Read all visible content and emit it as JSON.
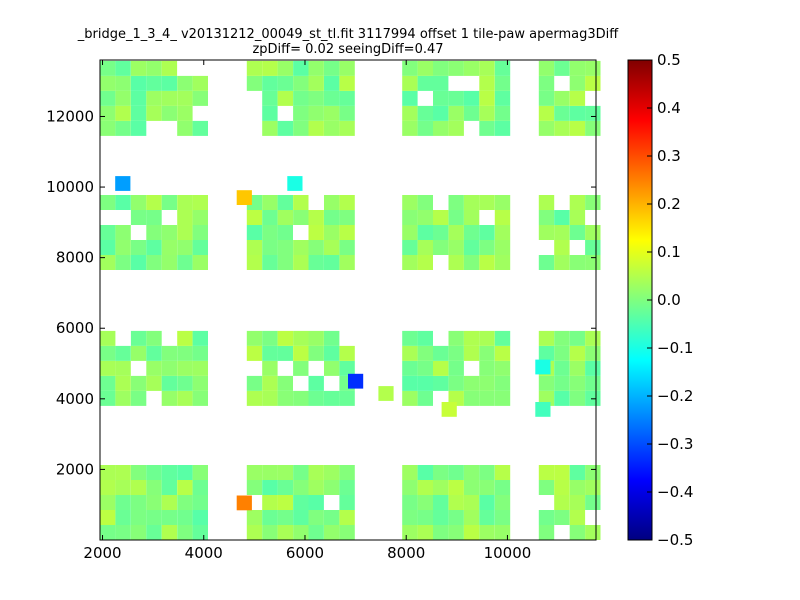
{
  "chart_data": {
    "type": "heatmap",
    "title_line1": "_bridge_1_3_4_ v20131212_00049_st_tl.fit 3117994 offset 1 tile-paw apermag3Diff",
    "title_line2": "zpDiff= 0.02 seeingDiff=0.47",
    "xlabel": "",
    "ylabel": "",
    "xlim": [
      1950,
      11750
    ],
    "ylim": [
      0,
      13600
    ],
    "x_ticks": [
      2000,
      4000,
      6000,
      8000,
      10000
    ],
    "x_tick_labels": [
      "2000",
      "4000",
      "6000",
      "8000",
      "10000"
    ],
    "y_ticks": [
      2000,
      4000,
      6000,
      8000,
      10000,
      12000
    ],
    "y_tick_labels": [
      "2000",
      "4000",
      "6000",
      "8000",
      "10000",
      "12000"
    ],
    "colormap": "jet",
    "color_range": [
      -0.5,
      0.5
    ],
    "colorbar_ticks": [
      0.5,
      0.4,
      0.3,
      0.2,
      0.1,
      0.0,
      -0.1,
      -0.2,
      -0.3,
      -0.4,
      -0.5
    ],
    "colorbar_tick_labels": [
      "0.5",
      "0.4",
      "0.3",
      "0.2",
      "0.1",
      "0.0",
      "−0.1",
      "−0.2",
      "−0.3",
      "−0.4",
      "−0.5"
    ],
    "grid": false,
    "cell_size": [
      305,
      425
    ],
    "blocks": [
      {
        "x0": 1950,
        "cols": 7,
        "y0": 0,
        "rows": 5
      },
      {
        "x0": 4850,
        "cols": 7,
        "y0": 0,
        "rows": 5
      },
      {
        "x0": 7920,
        "cols": 7,
        "y0": 0,
        "rows": 5
      },
      {
        "x0": 10620,
        "cols": 4,
        "y0": 0,
        "rows": 5
      },
      {
        "x0": 1950,
        "cols": 7,
        "y0": 3800,
        "rows": 5
      },
      {
        "x0": 4850,
        "cols": 7,
        "y0": 3800,
        "rows": 5
      },
      {
        "x0": 7920,
        "cols": 7,
        "y0": 3800,
        "rows": 5
      },
      {
        "x0": 10620,
        "cols": 4,
        "y0": 3800,
        "rows": 5
      },
      {
        "x0": 1950,
        "cols": 7,
        "y0": 7650,
        "rows": 5
      },
      {
        "x0": 4850,
        "cols": 7,
        "y0": 7650,
        "rows": 5
      },
      {
        "x0": 7920,
        "cols": 7,
        "y0": 7650,
        "rows": 5
      },
      {
        "x0": 10620,
        "cols": 4,
        "y0": 7650,
        "rows": 5
      },
      {
        "x0": 1950,
        "cols": 7,
        "y0": 11450,
        "rows": 5
      },
      {
        "x0": 4850,
        "cols": 7,
        "y0": 11450,
        "rows": 5
      },
      {
        "x0": 7920,
        "cols": 7,
        "y0": 11450,
        "rows": 5
      },
      {
        "x0": 10620,
        "cols": 4,
        "y0": 11450,
        "rows": 5
      }
    ],
    "outliers": [
      {
        "x": 2400,
        "y": 10100,
        "value": -0.22
      },
      {
        "x": 4800,
        "y": 9700,
        "value": 0.18
      },
      {
        "x": 5800,
        "y": 10100,
        "value": -0.1
      },
      {
        "x": 7000,
        "y": 4500,
        "value": -0.33
      },
      {
        "x": 4800,
        "y": 1050,
        "value": 0.25
      },
      {
        "x": 7600,
        "y": 4150,
        "value": 0.05
      },
      {
        "x": 8850,
        "y": 3700,
        "value": 0.07
      },
      {
        "x": 10700,
        "y": 4900,
        "value": -0.1
      },
      {
        "x": 10700,
        "y": 3700,
        "value": -0.06
      }
    ]
  }
}
